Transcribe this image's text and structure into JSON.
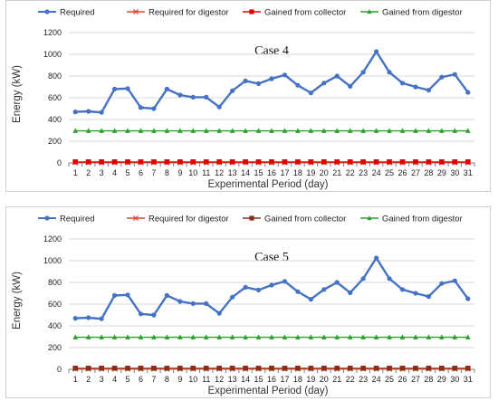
{
  "colors": {
    "required": "#4472C4",
    "required_for_digestor": "#E0442A",
    "gained_from_collector_case4": "#E00000",
    "gained_from_collector_case5": "#8B2E16",
    "gained_from_digestor": "#2CA02C",
    "grid": "#d9d9d9"
  },
  "chart_data": [
    {
      "type": "line",
      "title": "Case 4",
      "xlabel": "Experimental Period (day)",
      "ylabel": "Energy (kW)",
      "ylim": [
        0,
        1200
      ],
      "yticks": [
        0,
        200,
        400,
        600,
        800,
        1000,
        1200
      ],
      "grid": true,
      "legend_position": "top",
      "x": [
        1,
        2,
        3,
        4,
        5,
        6,
        7,
        8,
        9,
        10,
        11,
        12,
        13,
        14,
        15,
        16,
        17,
        18,
        19,
        20,
        21,
        22,
        23,
        24,
        25,
        26,
        27,
        28,
        29,
        30,
        31
      ],
      "series": [
        {
          "name": "Required",
          "marker": "circle",
          "values": [
            470,
            475,
            465,
            680,
            685,
            510,
            500,
            680,
            625,
            605,
            605,
            515,
            665,
            755,
            730,
            775,
            810,
            715,
            645,
            735,
            800,
            705,
            835,
            1025,
            835,
            735,
            700,
            670,
            790,
            815,
            650
          ]
        },
        {
          "name": "Required for digestor",
          "marker": "x",
          "values": [
            5,
            5,
            5,
            5,
            5,
            5,
            5,
            5,
            5,
            5,
            5,
            5,
            5,
            5,
            5,
            5,
            5,
            5,
            5,
            5,
            5,
            5,
            5,
            5,
            5,
            5,
            5,
            5,
            5,
            5,
            5
          ]
        },
        {
          "name": "Gained from collector",
          "marker": "square",
          "values": [
            10,
            10,
            10,
            10,
            10,
            10,
            10,
            10,
            10,
            10,
            10,
            10,
            10,
            10,
            10,
            10,
            10,
            10,
            10,
            10,
            10,
            10,
            10,
            10,
            10,
            10,
            10,
            10,
            10,
            10,
            10
          ]
        },
        {
          "name": "Gained from digestor",
          "marker": "triangle",
          "values": [
            295,
            295,
            295,
            295,
            295,
            295,
            295,
            295,
            295,
            295,
            295,
            295,
            295,
            295,
            295,
            295,
            295,
            295,
            295,
            295,
            295,
            295,
            295,
            295,
            295,
            295,
            295,
            295,
            295,
            295,
            295
          ]
        }
      ]
    },
    {
      "type": "line",
      "title": "Case 5",
      "xlabel": "Experimental Period (day)",
      "ylabel": "Energy (kW)",
      "ylim": [
        0,
        1200
      ],
      "yticks": [
        0,
        200,
        400,
        600,
        800,
        1000,
        1200
      ],
      "grid": true,
      "legend_position": "top",
      "x": [
        1,
        2,
        3,
        4,
        5,
        6,
        7,
        8,
        9,
        10,
        11,
        12,
        13,
        14,
        15,
        16,
        17,
        18,
        19,
        20,
        21,
        22,
        23,
        24,
        25,
        26,
        27,
        28,
        29,
        30,
        31
      ],
      "series": [
        {
          "name": "Required",
          "marker": "circle",
          "values": [
            470,
            475,
            465,
            680,
            685,
            510,
            500,
            680,
            625,
            605,
            605,
            515,
            665,
            755,
            730,
            775,
            810,
            715,
            645,
            735,
            800,
            705,
            835,
            1025,
            835,
            735,
            700,
            670,
            790,
            815,
            650
          ]
        },
        {
          "name": "Required for digestor",
          "marker": "x",
          "values": [
            5,
            5,
            5,
            5,
            5,
            5,
            5,
            5,
            5,
            5,
            5,
            5,
            5,
            5,
            5,
            5,
            5,
            5,
            5,
            5,
            5,
            5,
            5,
            5,
            5,
            5,
            5,
            5,
            5,
            5,
            5
          ]
        },
        {
          "name": "Gained from collector",
          "marker": "square",
          "values": [
            10,
            10,
            10,
            10,
            10,
            10,
            10,
            10,
            10,
            10,
            10,
            10,
            10,
            10,
            10,
            10,
            10,
            10,
            10,
            10,
            10,
            10,
            10,
            10,
            10,
            10,
            10,
            10,
            10,
            10,
            10
          ]
        },
        {
          "name": "Gained from digestor",
          "marker": "triangle",
          "values": [
            295,
            295,
            295,
            295,
            295,
            295,
            295,
            295,
            295,
            295,
            295,
            295,
            295,
            295,
            295,
            295,
            295,
            295,
            295,
            295,
            295,
            295,
            295,
            295,
            295,
            295,
            295,
            295,
            295,
            295,
            295
          ]
        }
      ]
    }
  ]
}
